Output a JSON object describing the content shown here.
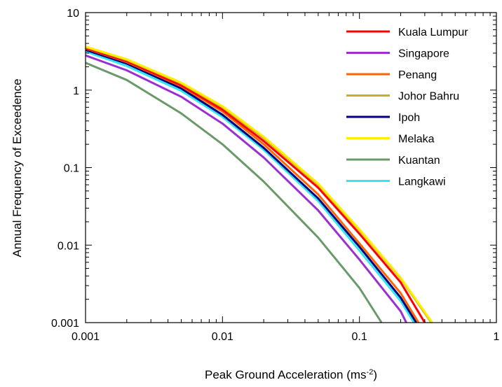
{
  "chart_data": {
    "type": "line",
    "xlabel_main": "Peak Ground Acceleration (ms",
    "xlabel_sup": "-2",
    "xlabel_close": ")",
    "ylabel": "Annual Frequency of Exceedence",
    "x_scale": "log",
    "y_scale": "log",
    "xlim": [
      0.001,
      1
    ],
    "ylim": [
      0.001,
      10
    ],
    "x_ticks": [
      {
        "value": 0.001,
        "label": "0.001"
      },
      {
        "value": 0.01,
        "label": "0.01"
      },
      {
        "value": 0.1,
        "label": "0.1"
      },
      {
        "value": 1,
        "label": "1"
      }
    ],
    "y_ticks": [
      {
        "value": 0.001,
        "label": "0.001"
      },
      {
        "value": 0.01,
        "label": "0.01"
      },
      {
        "value": 0.1,
        "label": "0.1"
      },
      {
        "value": 1,
        "label": "1"
      },
      {
        "value": 10,
        "label": "10"
      }
    ],
    "grid": false,
    "legend_position": "top-right",
    "series": [
      {
        "name": "Kuala Lumpur",
        "color": "#ff0000",
        "x": [
          0.001,
          0.002,
          0.005,
          0.01,
          0.02,
          0.05,
          0.1,
          0.2,
          0.3
        ],
        "y": [
          3.5,
          2.35,
          1.15,
          0.56,
          0.22,
          0.055,
          0.014,
          0.0033,
          0.001
        ]
      },
      {
        "name": "Singapore",
        "color": "#9b30d0",
        "x": [
          0.001,
          0.002,
          0.005,
          0.01,
          0.02,
          0.05,
          0.1,
          0.2,
          0.22
        ],
        "y": [
          2.8,
          1.8,
          0.82,
          0.37,
          0.135,
          0.028,
          0.0065,
          0.0014,
          0.001
        ]
      },
      {
        "name": "Penang",
        "color": "#ff6600",
        "x": [
          0.001,
          0.002,
          0.005,
          0.01,
          0.02,
          0.05,
          0.1,
          0.2,
          0.27
        ],
        "y": [
          3.45,
          2.3,
          1.12,
          0.53,
          0.2,
          0.045,
          0.0105,
          0.0024,
          0.001
        ]
      },
      {
        "name": "Johor Bahru",
        "color": "#c8b020",
        "x": [
          0.001,
          0.002,
          0.005,
          0.01,
          0.02,
          0.05,
          0.1,
          0.2,
          0.335
        ],
        "y": [
          3.6,
          2.45,
          1.22,
          0.6,
          0.24,
          0.06,
          0.0155,
          0.0037,
          0.001
        ]
      },
      {
        "name": "Ipoh",
        "color": "#000080",
        "x": [
          0.001,
          0.002,
          0.005,
          0.01,
          0.02,
          0.05,
          0.1,
          0.2,
          0.26
        ],
        "y": [
          3.3,
          2.2,
          1.05,
          0.48,
          0.18,
          0.04,
          0.0095,
          0.0021,
          0.001
        ]
      },
      {
        "name": "Melaka",
        "color": "#ffee00",
        "x": [
          0.001,
          0.002,
          0.005,
          0.01,
          0.02,
          0.05,
          0.1,
          0.2,
          0.34
        ],
        "y": [
          3.65,
          2.5,
          1.25,
          0.62,
          0.25,
          0.062,
          0.016,
          0.0038,
          0.001
        ]
      },
      {
        "name": "Kuantan",
        "color": "#6a9a6a",
        "x": [
          0.001,
          0.002,
          0.005,
          0.01,
          0.02,
          0.05,
          0.1,
          0.145
        ],
        "y": [
          2.25,
          1.35,
          0.5,
          0.2,
          0.066,
          0.0125,
          0.0028,
          0.001
        ]
      },
      {
        "name": "Langkawi",
        "color": "#33e6f0",
        "x": [
          0.001,
          0.002,
          0.005,
          0.01,
          0.02,
          0.05,
          0.1,
          0.2,
          0.25
        ],
        "y": [
          3.15,
          2.05,
          0.98,
          0.45,
          0.17,
          0.037,
          0.0085,
          0.0019,
          0.001
        ]
      }
    ]
  }
}
